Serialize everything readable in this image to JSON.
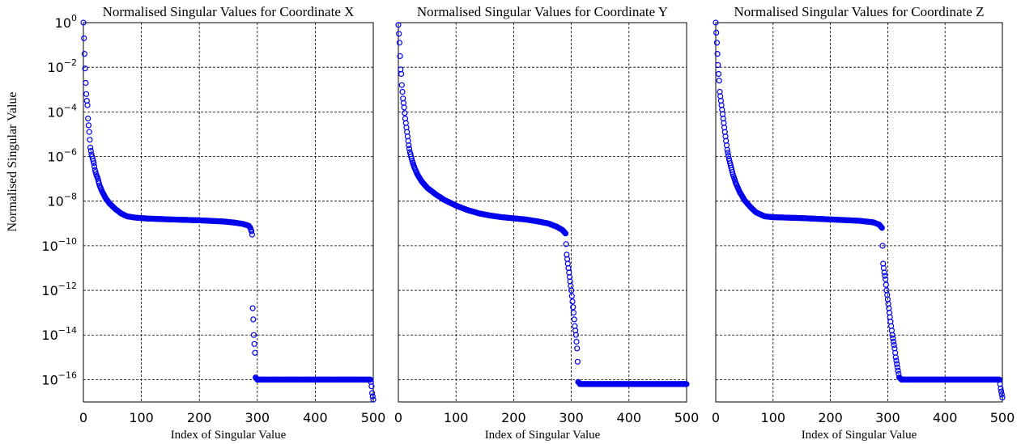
{
  "figure": {
    "ylabel": "Normalised Singular Value",
    "xlabel": "Index of Singular Value"
  },
  "chart_data": [
    {
      "type": "scatter",
      "title": "Normalised Singular Values for Coordinate X",
      "xlabel": "Index of Singular Value",
      "ylabel": "Normalised Singular Value",
      "yscale": "log",
      "xlim": [
        0,
        500
      ],
      "ylim_exp": [
        -17,
        0
      ],
      "xticks": [
        "0",
        "100",
        "200",
        "300",
        "400",
        "500"
      ],
      "yticks": [
        "10^0",
        "10^-2",
        "10^-4",
        "10^-6",
        "10^-8",
        "10^-10",
        "10^-12",
        "10^-14",
        "10^-16"
      ],
      "grid": true,
      "marker": "open-circle",
      "color": "#0000ee",
      "total_points": 500,
      "series_points": [
        [
          0,
          0
        ],
        [
          2,
          -1.4
        ],
        [
          4,
          -2.7
        ],
        [
          5,
          -3.2
        ],
        [
          6,
          -3.5
        ],
        [
          7,
          -3.7
        ],
        [
          8,
          -4.3
        ],
        [
          9,
          -4.6
        ],
        [
          10,
          -4.9
        ],
        [
          12,
          -5.6
        ],
        [
          14,
          -5.9
        ],
        [
          16,
          -6.1
        ],
        [
          18,
          -6.3
        ],
        [
          20,
          -6.6
        ],
        [
          22,
          -6.8
        ],
        [
          25,
          -7.0
        ],
        [
          28,
          -7.3
        ],
        [
          32,
          -7.55
        ],
        [
          38,
          -7.85
        ],
        [
          45,
          -8.1
        ],
        [
          55,
          -8.35
        ],
        [
          65,
          -8.55
        ],
        [
          75,
          -8.68
        ],
        [
          90,
          -8.74
        ],
        [
          110,
          -8.78
        ],
        [
          150,
          -8.82
        ],
        [
          200,
          -8.86
        ],
        [
          240,
          -8.91
        ],
        [
          260,
          -8.96
        ],
        [
          275,
          -9.02
        ],
        [
          285,
          -9.1
        ],
        [
          288,
          -9.2
        ],
        [
          290,
          -9.35
        ],
        [
          291,
          -9.5
        ],
        [
          292,
          -12.8
        ],
        [
          293,
          -13.3
        ],
        [
          294,
          -14.0
        ],
        [
          295,
          -14.4
        ],
        [
          296,
          -14.8
        ],
        [
          297,
          -15.9
        ],
        [
          300,
          -16.0
        ],
        [
          400,
          -16.0
        ],
        [
          495,
          -16.0
        ],
        [
          496,
          -16.1
        ],
        [
          497,
          -16.3
        ],
        [
          498,
          -16.6
        ],
        [
          500,
          -16.9
        ]
      ]
    },
    {
      "type": "scatter",
      "title": "Normalised Singular Values for Coordinate Y",
      "xlabel": "Index of Singular Value",
      "yscale": "log",
      "xlim": [
        0,
        500
      ],
      "ylim_exp": [
        -17,
        0
      ],
      "xticks": [
        "0",
        "100",
        "200",
        "300",
        "400",
        "500"
      ],
      "grid": true,
      "marker": "open-circle",
      "color": "#0000ee",
      "total_points": 500,
      "series_points": [
        [
          0,
          -0.1
        ],
        [
          2,
          -0.9
        ],
        [
          3,
          -1.5
        ],
        [
          4,
          -2.1
        ],
        [
          5,
          -2.3
        ],
        [
          6,
          -2.8
        ],
        [
          8,
          -3.4
        ],
        [
          10,
          -3.8
        ],
        [
          12,
          -4.3
        ],
        [
          14,
          -4.7
        ],
        [
          16,
          -5.1
        ],
        [
          18,
          -5.5
        ],
        [
          20,
          -5.8
        ],
        [
          24,
          -6.2
        ],
        [
          28,
          -6.5
        ],
        [
          33,
          -6.8
        ],
        [
          40,
          -7.1
        ],
        [
          50,
          -7.4
        ],
        [
          65,
          -7.7
        ],
        [
          80,
          -7.95
        ],
        [
          100,
          -8.2
        ],
        [
          120,
          -8.4
        ],
        [
          140,
          -8.55
        ],
        [
          160,
          -8.65
        ],
        [
          180,
          -8.72
        ],
        [
          200,
          -8.77
        ],
        [
          220,
          -8.82
        ],
        [
          240,
          -8.9
        ],
        [
          260,
          -9.0
        ],
        [
          275,
          -9.15
        ],
        [
          285,
          -9.3
        ],
        [
          290,
          -9.45
        ],
        [
          292,
          -10.4
        ],
        [
          294,
          -10.8
        ],
        [
          296,
          -11.2
        ],
        [
          298,
          -11.6
        ],
        [
          300,
          -12.0
        ],
        [
          302,
          -12.5
        ],
        [
          304,
          -13.0
        ],
        [
          306,
          -13.6
        ],
        [
          308,
          -14.0
        ],
        [
          310,
          -14.6
        ],
        [
          311,
          -15.2
        ],
        [
          312,
          -16.1
        ],
        [
          315,
          -16.2
        ],
        [
          400,
          -16.2
        ],
        [
          500,
          -16.2
        ],
        [
          501,
          -16.9
        ]
      ]
    },
    {
      "type": "scatter",
      "title": "Normalised Singular Values for Coordinate Z",
      "xlabel": "Index of Singular Value",
      "yscale": "log",
      "xlim": [
        0,
        500
      ],
      "ylim_exp": [
        -17,
        0
      ],
      "xticks": [
        "0",
        "100",
        "200",
        "300",
        "400",
        "500"
      ],
      "grid": true,
      "marker": "open-circle",
      "color": "#0000ee",
      "total_points": 500,
      "series_points": [
        [
          0,
          0
        ],
        [
          2,
          -0.9
        ],
        [
          4,
          -1.9
        ],
        [
          5,
          -2.3
        ],
        [
          6,
          -2.6
        ],
        [
          7,
          -3.1
        ],
        [
          8,
          -3.3
        ],
        [
          10,
          -3.7
        ],
        [
          12,
          -4.1
        ],
        [
          14,
          -4.5
        ],
        [
          16,
          -4.9
        ],
        [
          18,
          -5.3
        ],
        [
          20,
          -5.7
        ],
        [
          23,
          -6.1
        ],
        [
          26,
          -6.4
        ],
        [
          30,
          -6.8
        ],
        [
          35,
          -7.2
        ],
        [
          42,
          -7.6
        ],
        [
          50,
          -7.95
        ],
        [
          60,
          -8.25
        ],
        [
          70,
          -8.5
        ],
        [
          85,
          -8.68
        ],
        [
          100,
          -8.72
        ],
        [
          150,
          -8.76
        ],
        [
          200,
          -8.82
        ],
        [
          250,
          -8.88
        ],
        [
          275,
          -8.95
        ],
        [
          285,
          -9.05
        ],
        [
          290,
          -9.2
        ],
        [
          292,
          -10.8
        ],
        [
          294,
          -11.2
        ],
        [
          296,
          -11.5
        ],
        [
          298,
          -12.0
        ],
        [
          300,
          -12.4
        ],
        [
          302,
          -12.8
        ],
        [
          304,
          -13.2
        ],
        [
          306,
          -13.6
        ],
        [
          308,
          -14.0
        ],
        [
          310,
          -14.3
        ],
        [
          312,
          -14.6
        ],
        [
          314,
          -15.0
        ],
        [
          316,
          -15.3
        ],
        [
          318,
          -15.6
        ],
        [
          320,
          -15.9
        ],
        [
          324,
          -16.0
        ],
        [
          400,
          -16.0
        ],
        [
          495,
          -16.0
        ],
        [
          497,
          -16.4
        ],
        [
          500,
          -16.8
        ]
      ]
    }
  ]
}
